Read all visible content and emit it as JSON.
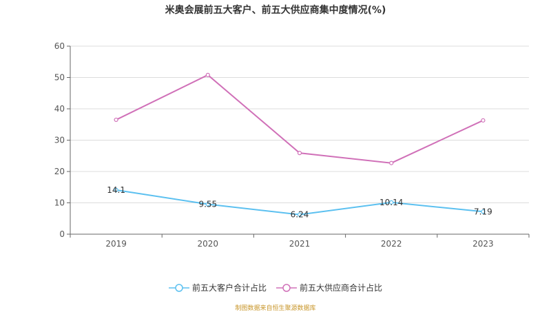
{
  "chart_data": {
    "type": "line",
    "title": "米奥会展前五大客户、前五大供应商集中度情况(%)",
    "categories": [
      "2019",
      "2020",
      "2021",
      "2022",
      "2023"
    ],
    "ylim": [
      0,
      60
    ],
    "yticks": [
      0,
      10,
      20,
      30,
      40,
      50,
      60
    ],
    "grid": true,
    "legend_position": "bottom",
    "series": [
      {
        "name": "前五大客户合计占比",
        "color": "#5bc0f0",
        "values": [
          14.1,
          9.55,
          6.24,
          10.14,
          7.19
        ],
        "labels": [
          "14.1",
          "9.55",
          "6.24",
          "10.14",
          "7.19"
        ],
        "show_labels": true
      },
      {
        "name": "前五大供应商合计占比",
        "color": "#d070b8",
        "values": [
          36.5,
          50.8,
          25.9,
          22.7,
          36.3
        ],
        "show_labels": false
      }
    ]
  },
  "source_text": "制图数据来自恒生聚源数据库"
}
